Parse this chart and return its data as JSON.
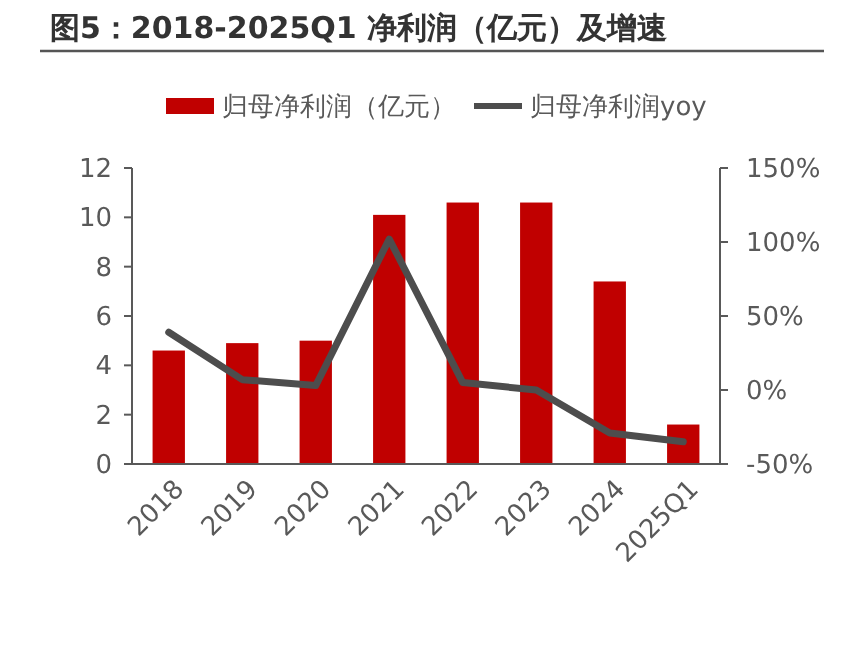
{
  "chart_data": {
    "type": "bar",
    "title": "图5：2018-2025Q1 净利润（亿元）及增速",
    "categories": [
      "2018",
      "2019",
      "2020",
      "2021",
      "2022",
      "2023",
      "2024",
      "2025Q1"
    ],
    "series": [
      {
        "name": "归母净利润（亿元）",
        "color": "#c00000",
        "values": [
          4.6,
          4.9,
          5.0,
          10.1,
          10.6,
          10.6,
          7.4,
          1.6
        ]
      },
      {
        "name": "归母净利润yoy",
        "type": "line",
        "axis": "y2",
        "color": "#4d4d4d",
        "values": [
          39,
          7,
          3,
          102,
          5,
          0,
          -29,
          -35
        ]
      }
    ],
    "ylim": [
      0,
      12
    ],
    "yticks": [
      0,
      2,
      4,
      6,
      8,
      10,
      12
    ],
    "y2lim": [
      -50,
      150
    ],
    "y2ticks": [
      {
        "value": -50,
        "label": "-50%"
      },
      {
        "value": 0,
        "label": "0%"
      },
      {
        "value": 50,
        "label": "50%"
      },
      {
        "value": 100,
        "label": "100%"
      },
      {
        "value": 150,
        "label": "150%"
      }
    ],
    "legend": "top",
    "grid": false,
    "marker": "none",
    "line_style": "solid"
  }
}
